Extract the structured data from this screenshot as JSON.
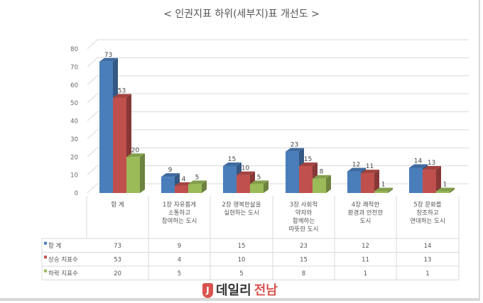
{
  "chart_data": {
    "type": "bar",
    "title": "< 인권지표 하위(세부지)표 개선도 >",
    "categories": [
      [
        "합  계"
      ],
      [
        "1장 자유롭게",
        "소통하고",
        "참여하는 도시"
      ],
      [
        "2장 행복한삶을",
        "실현하는 도시"
      ],
      [
        "3장 사회적",
        "약자와",
        "함께하는",
        "따뜻한 도시"
      ],
      [
        "4장 쾌적한",
        "환경과 안전한",
        "도시"
      ],
      [
        "5장 문화를",
        "창조하고",
        "연대하는 도시"
      ]
    ],
    "series": [
      {
        "name": "합  계",
        "color": "#4a7ebb",
        "values": [
          73,
          9,
          15,
          23,
          12,
          14
        ]
      },
      {
        "name": "상승 지표수",
        "color": "#c0504d",
        "values": [
          53,
          4,
          10,
          15,
          11,
          13
        ]
      },
      {
        "name": "하락 지표수",
        "color": "#9bbb59",
        "values": [
          20,
          5,
          5,
          8,
          1,
          1
        ]
      }
    ],
    "yticks": [
      0,
      10,
      20,
      30,
      40,
      50,
      60,
      70,
      80
    ],
    "ylim": [
      0,
      80
    ],
    "grid": true,
    "legend": "data-table",
    "xlabel": "",
    "ylabel": ""
  },
  "watermark": {
    "part1": "데일리",
    "part2": "전남",
    "mark": "J"
  }
}
